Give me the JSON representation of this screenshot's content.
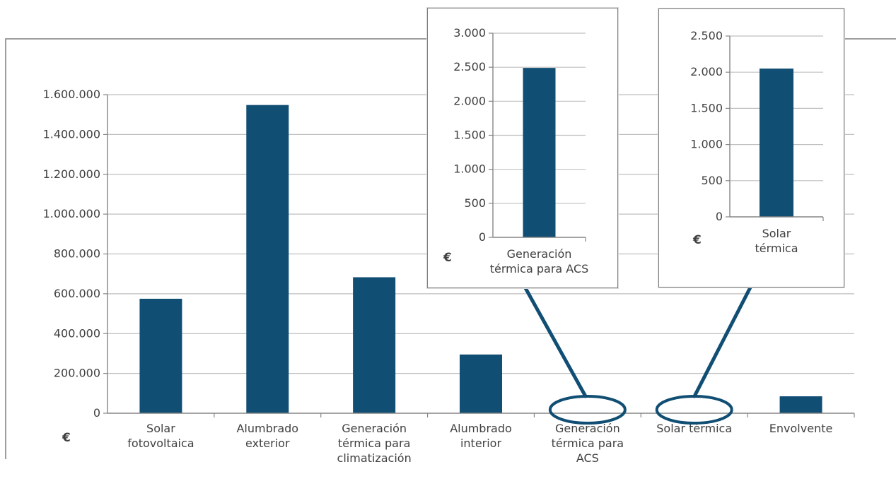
{
  "colors": {
    "bar": "#114e73",
    "grid": "#bfbfbf",
    "axis": "#868686",
    "text": "#404040",
    "frame": "#7f7f7f"
  },
  "chart_data": [
    {
      "type": "bar",
      "title": "",
      "ylabel": "€",
      "ylim": [
        0,
        1600000
      ],
      "yticks": [
        0,
        200000,
        400000,
        600000,
        800000,
        1000000,
        1200000,
        1400000,
        1600000
      ],
      "ytick_labels": [
        "0",
        "200.000",
        "400.000",
        "600.000",
        "800.000",
        "1.000.000",
        "1.200.000",
        "1.400.000",
        "1.600.000"
      ],
      "grid": true,
      "categories": [
        [
          "Solar",
          "fotovoltaica"
        ],
        [
          "Alumbrado",
          "exterior"
        ],
        [
          "Generación",
          "térmica para",
          "climatización"
        ],
        [
          "Alumbrado",
          "interior"
        ],
        [
          "Generación",
          "térmica para",
          "ACS"
        ],
        [
          "Solar térmica"
        ],
        [
          "Envolvente"
        ]
      ],
      "values": [
        575000,
        1548000,
        683000,
        295000,
        2490,
        2050,
        85000
      ],
      "highlighted_categories": [
        4,
        5
      ]
    },
    {
      "type": "bar",
      "title": "",
      "ylabel": "€",
      "ylim": [
        0,
        3000
      ],
      "yticks": [
        0,
        500,
        1000,
        1500,
        2000,
        2500,
        3000
      ],
      "ytick_labels": [
        "0",
        "500",
        "1.000",
        "1.500",
        "2.000",
        "2.500",
        "3.000"
      ],
      "grid": true,
      "categories": [
        [
          "Generación",
          "térmica para ACS"
        ]
      ],
      "values": [
        2490
      ]
    },
    {
      "type": "bar",
      "title": "",
      "ylabel": "€",
      "ylim": [
        0,
        2500
      ],
      "yticks": [
        0,
        500,
        1000,
        1500,
        2000,
        2500
      ],
      "ytick_labels": [
        "0",
        "500",
        "1.000",
        "1.500",
        "2.000",
        "2.500"
      ],
      "grid": true,
      "categories": [
        [
          "Solar",
          "térmica"
        ]
      ],
      "values": [
        2050
      ]
    }
  ]
}
